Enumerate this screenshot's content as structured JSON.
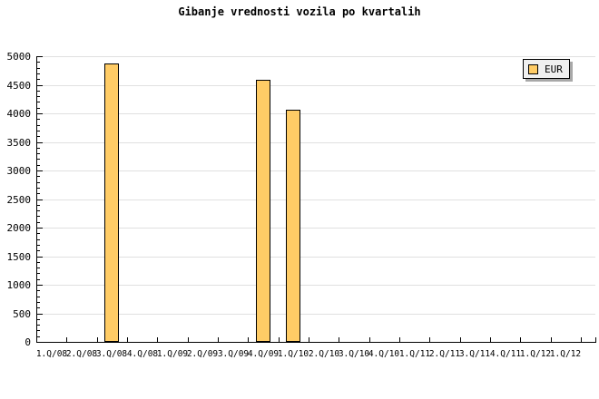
{
  "title": "Gibanje vrednosti vozila po kvartalih",
  "legend": {
    "label": "EUR",
    "position": "top-right"
  },
  "colors": {
    "bar_fill": "#FFCC66",
    "bar_border": "#000000",
    "gridline": "#E0E0E0",
    "axis": "#000000",
    "legend_bg": "#F0F0F0",
    "legend_border": "#000000",
    "legend_shadow": "#A8A8A8",
    "background": "#FFFFFF",
    "text": "#000000"
  },
  "chart_data": {
    "type": "bar",
    "title": "Gibanje vrednosti vozila po kvartalih",
    "categories": [
      "1.Q/08",
      "2.Q/08",
      "3.Q/08",
      "4.Q/08",
      "1.Q/09",
      "2.Q/09",
      "3.Q/09",
      "4.Q/09",
      "1.Q/10",
      "2.Q/10",
      "3.Q/10",
      "4.Q/10",
      "1.Q/11",
      "2.Q/11",
      "3.Q/11",
      "4.Q/11",
      "1.Q/12",
      "1.Q/12"
    ],
    "series": [
      {
        "name": "EUR",
        "color": "#FFCC66",
        "values": [
          null,
          null,
          4870,
          null,
          null,
          null,
          null,
          4590,
          4060,
          null,
          null,
          null,
          null,
          null,
          null,
          null,
          null,
          null
        ]
      }
    ],
    "xlabel": "",
    "ylabel": "",
    "ylim": [
      0,
      5000
    ],
    "y_major_step": 500,
    "y_minor_step": 100,
    "grid": "horizontal-major",
    "legend_position": "top-right"
  }
}
